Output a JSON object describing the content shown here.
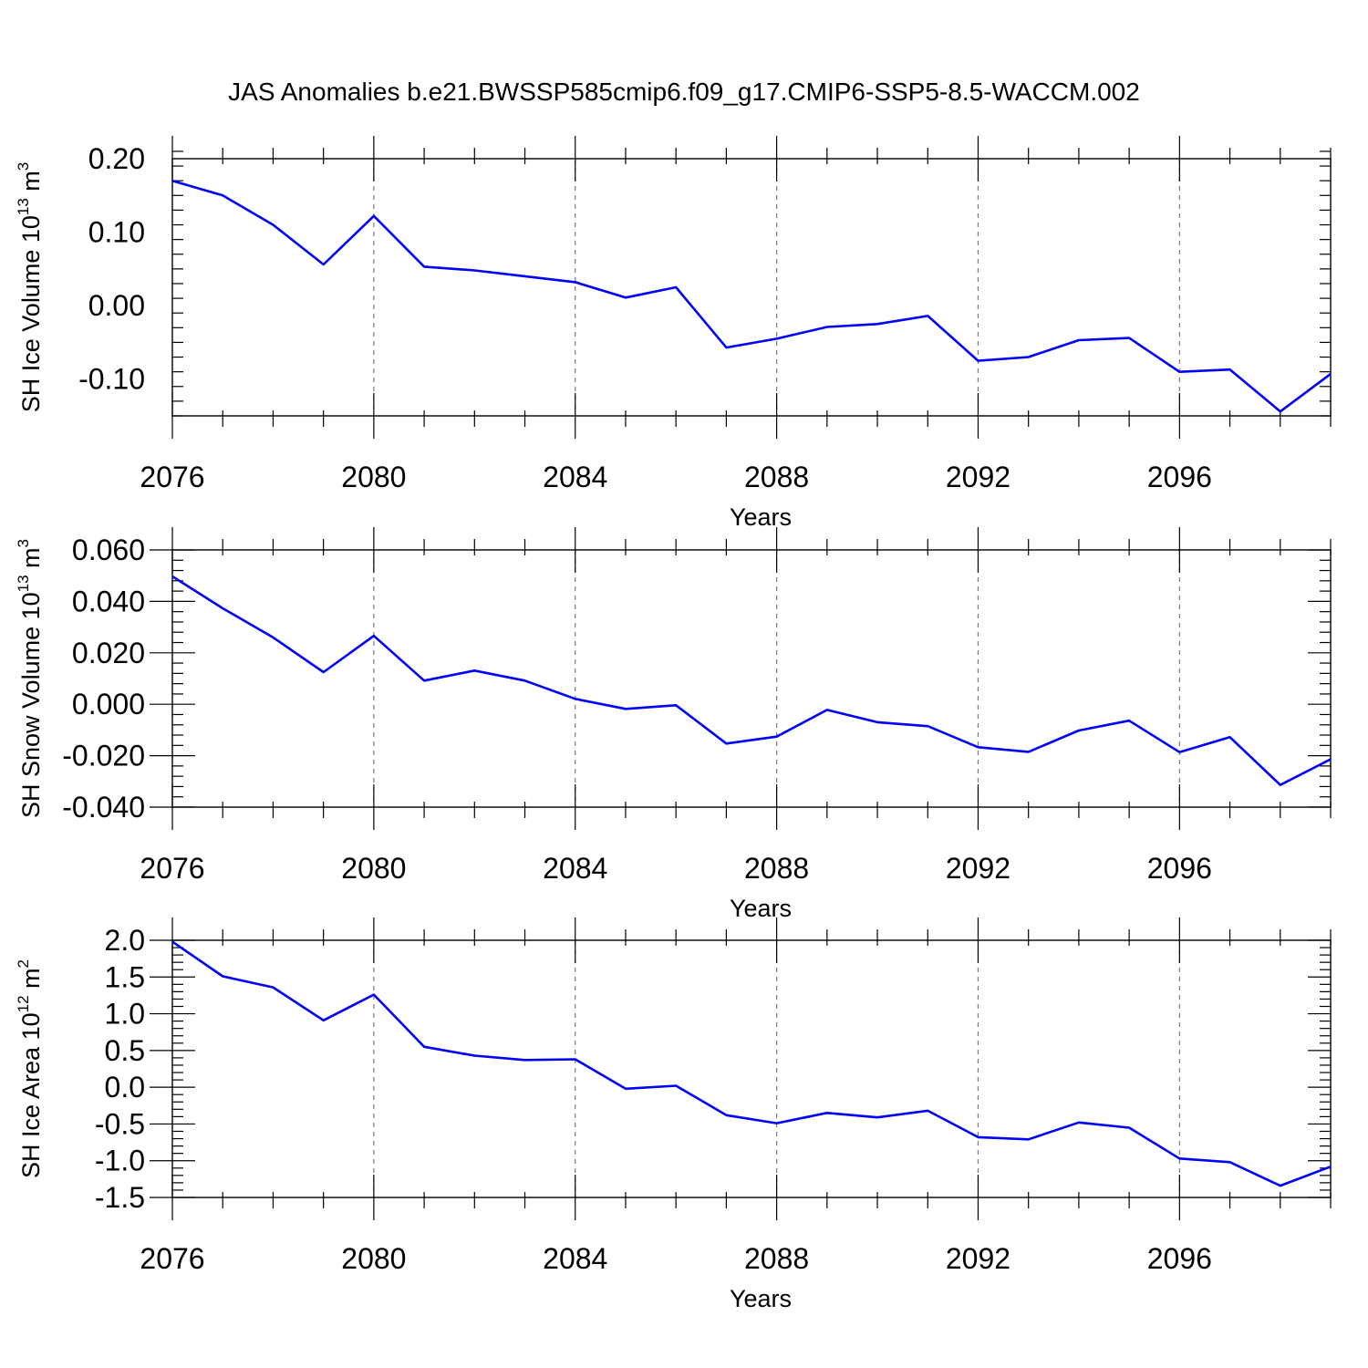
{
  "figure_title": "JAS Anomalies b.e21.BWSSP585cmip6.f09_g17.CMIP6-SSP5-8.5-WACCM.002",
  "chart_data": [
    {
      "type": "line",
      "title": "",
      "xlabel": "Years",
      "ylabel": {
        "text": "SH Ice Volume 10",
        "exp": "13",
        "unit": " m",
        "unit_exp": "3"
      },
      "xlim": [
        2076,
        2099
      ],
      "ylim": [
        -0.15,
        0.2
      ],
      "xticks": [
        2076,
        2080,
        2084,
        2088,
        2092,
        2096
      ],
      "xtick_labels": [
        "2076",
        "2080",
        "2084",
        "2088",
        "2092",
        "2096"
      ],
      "yticks": [
        -0.1,
        0.0,
        0.1,
        0.2
      ],
      "ytick_labels": [
        "-0.10",
        "0.00",
        "0.10",
        "0.20"
      ],
      "grid": "x-major-dashed",
      "series": [
        {
          "color": "#0000ff",
          "x": [
            2076,
            2077,
            2078,
            2079,
            2080,
            2081,
            2082,
            2083,
            2084,
            2085,
            2086,
            2087,
            2088,
            2089,
            2090,
            2091,
            2092,
            2093,
            2094,
            2095,
            2096,
            2097,
            2098,
            2099
          ],
          "y": [
            0.17,
            0.15,
            0.11,
            0.056,
            0.122,
            0.053,
            0.048,
            0.04,
            0.032,
            0.011,
            0.025,
            -0.057,
            -0.045,
            -0.029,
            -0.025,
            -0.014,
            -0.075,
            -0.07,
            -0.047,
            -0.044,
            -0.09,
            -0.087,
            -0.144,
            -0.093
          ]
        }
      ]
    },
    {
      "type": "line",
      "title": "",
      "xlabel": "Years",
      "ylabel": {
        "text": "SH Snow Volume 10",
        "exp": "13",
        "unit": " m",
        "unit_exp": "3"
      },
      "xlim": [
        2076,
        2099
      ],
      "ylim": [
        -0.04,
        0.06
      ],
      "xticks": [
        2076,
        2080,
        2084,
        2088,
        2092,
        2096
      ],
      "xtick_labels": [
        "2076",
        "2080",
        "2084",
        "2088",
        "2092",
        "2096"
      ],
      "yticks": [
        -0.04,
        -0.02,
        0.0,
        0.02,
        0.04,
        0.06
      ],
      "ytick_labels": [
        "-0.040",
        "-0.020",
        "0.000",
        "0.020",
        "0.040",
        "0.060"
      ],
      "grid": "x-major-dashed",
      "series": [
        {
          "color": "#0000ff",
          "x": [
            2076,
            2077,
            2078,
            2079,
            2080,
            2081,
            2082,
            2083,
            2084,
            2085,
            2086,
            2087,
            2088,
            2089,
            2090,
            2091,
            2092,
            2093,
            2094,
            2095,
            2096,
            2097,
            2098,
            2099
          ],
          "y": [
            0.0497,
            0.0373,
            0.026,
            0.0125,
            0.0266,
            0.0092,
            0.0131,
            0.0092,
            0.0021,
            -0.0018,
            -0.0004,
            -0.0153,
            -0.0126,
            -0.0022,
            -0.007,
            -0.0085,
            -0.0167,
            -0.0185,
            -0.0102,
            -0.0064,
            -0.0186,
            -0.0128,
            -0.0314,
            -0.0214
          ]
        }
      ]
    },
    {
      "type": "line",
      "title": "",
      "xlabel": "Years",
      "ylabel": {
        "text": "SH Ice Area 10",
        "exp": "12",
        "unit": " m",
        "unit_exp": "2"
      },
      "xlim": [
        2076,
        2099
      ],
      "ylim": [
        -1.5,
        2.0
      ],
      "xticks": [
        2076,
        2080,
        2084,
        2088,
        2092,
        2096
      ],
      "xtick_labels": [
        "2076",
        "2080",
        "2084",
        "2088",
        "2092",
        "2096"
      ],
      "yticks": [
        -1.5,
        -1.0,
        -0.5,
        0.0,
        0.5,
        1.0,
        1.5,
        2.0
      ],
      "ytick_labels": [
        "-1.5",
        "-1.0",
        "-0.5",
        "0.0",
        "0.5",
        "1.0",
        "1.5",
        "2.0"
      ],
      "grid": "x-major-dashed",
      "series": [
        {
          "color": "#0000ff",
          "x": [
            2076,
            2077,
            2078,
            2079,
            2080,
            2081,
            2082,
            2083,
            2084,
            2085,
            2086,
            2087,
            2088,
            2089,
            2090,
            2091,
            2092,
            2093,
            2094,
            2095,
            2096,
            2097,
            2098,
            2099
          ],
          "y": [
            1.98,
            1.51,
            1.36,
            0.91,
            1.26,
            0.55,
            0.43,
            0.37,
            0.38,
            -0.02,
            0.02,
            -0.38,
            -0.49,
            -0.35,
            -0.41,
            -0.32,
            -0.68,
            -0.71,
            -0.48,
            -0.55,
            -0.97,
            -1.02,
            -1.34,
            -1.08
          ]
        }
      ]
    }
  ]
}
